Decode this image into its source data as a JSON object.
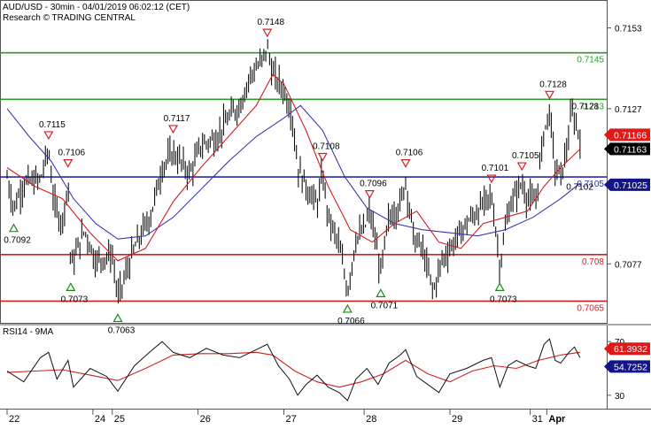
{
  "header": {
    "title": "AUD/USD - 30min - 04/01/2019 06:02:12 (CET)",
    "subtitle": "Research © TRADING CENTRAL"
  },
  "colors": {
    "green_line": "#2e9a2e",
    "blue_line": "#2a2aa8",
    "red_line": "#d42020",
    "candles": "#111111",
    "ma_red": "#cc2222",
    "ma_blue": "#3a3ab0",
    "rsi": "#111111",
    "rsi_ma": "#cc2222",
    "badge_red": "#e01818",
    "badge_black": "#000000",
    "badge_blue": "#14148a",
    "marker_green": "#1a8a1a",
    "marker_red": "#d42020"
  },
  "chart_data": [
    {
      "type": "line",
      "name": "price",
      "y_ticks": [
        "0.7153",
        "0.7127",
        "0.7102",
        "0.7077"
      ],
      "ylim": [
        0.7058,
        0.7162
      ],
      "x_ticks": [
        "22",
        "24",
        "25",
        "26",
        "27",
        "28",
        "29",
        "31",
        "Apr"
      ],
      "levels": [
        {
          "label": "0.7145",
          "value": 0.7145,
          "color": "green"
        },
        {
          "label": "0.713",
          "value": 0.713,
          "color": "green"
        },
        {
          "label": "0.7105",
          "value": 0.7105,
          "color": "blue"
        },
        {
          "label": "0.708",
          "value": 0.708,
          "color": "red"
        },
        {
          "label": "0.7065",
          "value": 0.7065,
          "color": "red"
        }
      ],
      "badges": [
        {
          "label": "0.71166",
          "value": 0.71166,
          "style": "red"
        },
        {
          "label": "0.71163",
          "value": 0.71163,
          "style": "black"
        },
        {
          "label": "0.71025",
          "value": 0.71025,
          "style": "blue"
        }
      ],
      "annotations": [
        {
          "label": "0.7092",
          "t": 0.012,
          "value": 0.7092,
          "kind": "low"
        },
        {
          "label": "0.7115",
          "t": 0.075,
          "value": 0.7115,
          "kind": "high"
        },
        {
          "label": "0.7106",
          "t": 0.11,
          "value": 0.7106,
          "kind": "high"
        },
        {
          "label": "0.7073",
          "t": 0.115,
          "value": 0.7073,
          "kind": "low"
        },
        {
          "label": "0.7063",
          "t": 0.2,
          "value": 0.7063,
          "kind": "low"
        },
        {
          "label": "0.7117",
          "t": 0.3,
          "value": 0.7117,
          "kind": "high"
        },
        {
          "label": "0.7148",
          "t": 0.47,
          "value": 0.7148,
          "kind": "high"
        },
        {
          "label": "0.7108",
          "t": 0.57,
          "value": 0.7108,
          "kind": "high"
        },
        {
          "label": "0.7066",
          "t": 0.615,
          "value": 0.7066,
          "kind": "low"
        },
        {
          "label": "0.7096",
          "t": 0.655,
          "value": 0.7096,
          "kind": "high"
        },
        {
          "label": "0.7071",
          "t": 0.675,
          "value": 0.7071,
          "kind": "low"
        },
        {
          "label": "0.7106",
          "t": 0.72,
          "value": 0.7106,
          "kind": "high"
        },
        {
          "label": "0.7101",
          "t": 0.875,
          "value": 0.7101,
          "kind": "high"
        },
        {
          "label": "0.7073",
          "t": 0.89,
          "value": 0.7073,
          "kind": "low"
        },
        {
          "label": "0.7105",
          "t": 0.93,
          "value": 0.7105,
          "kind": "high"
        },
        {
          "label": "0.7128",
          "t": 0.98,
          "value": 0.7128,
          "kind": "high"
        },
        {
          "label": "0.7128",
          "t": 1.02,
          "value": 0.7128,
          "kind": "label"
        },
        {
          "label": "0.7102",
          "t": 1.01,
          "value": 0.7102,
          "kind": "label"
        }
      ],
      "series": [
        {
          "name": "price",
          "points": [
            [
              0.0,
              0.7105
            ],
            [
              0.012,
              0.7095
            ],
            [
              0.03,
              0.7103
            ],
            [
              0.06,
              0.7104
            ],
            [
              0.075,
              0.7114
            ],
            [
              0.085,
              0.7096
            ],
            [
              0.1,
              0.709
            ],
            [
              0.11,
              0.7104
            ],
            [
              0.115,
              0.7076
            ],
            [
              0.14,
              0.7088
            ],
            [
              0.16,
              0.7078
            ],
            [
              0.19,
              0.708
            ],
            [
              0.2,
              0.7066
            ],
            [
              0.23,
              0.7082
            ],
            [
              0.26,
              0.7093
            ],
            [
              0.28,
              0.7108
            ],
            [
              0.3,
              0.7113
            ],
            [
              0.33,
              0.7106
            ],
            [
              0.35,
              0.7115
            ],
            [
              0.38,
              0.7118
            ],
            [
              0.4,
              0.7124
            ],
            [
              0.42,
              0.7128
            ],
            [
              0.44,
              0.7138
            ],
            [
              0.46,
              0.7142
            ],
            [
              0.47,
              0.7147
            ],
            [
              0.48,
              0.7138
            ],
            [
              0.5,
              0.7133
            ],
            [
              0.515,
              0.7125
            ],
            [
              0.525,
              0.7108
            ],
            [
              0.54,
              0.7102
            ],
            [
              0.56,
              0.7096
            ],
            [
              0.57,
              0.7106
            ],
            [
              0.58,
              0.7092
            ],
            [
              0.6,
              0.7083
            ],
            [
              0.615,
              0.7068
            ],
            [
              0.63,
              0.7085
            ],
            [
              0.645,
              0.7088
            ],
            [
              0.655,
              0.7094
            ],
            [
              0.665,
              0.7085
            ],
            [
              0.675,
              0.7074
            ],
            [
              0.69,
              0.7092
            ],
            [
              0.71,
              0.7096
            ],
            [
              0.72,
              0.7104
            ],
            [
              0.735,
              0.7085
            ],
            [
              0.75,
              0.7082
            ],
            [
              0.77,
              0.7068
            ],
            [
              0.785,
              0.7078
            ],
            [
              0.8,
              0.7082
            ],
            [
              0.83,
              0.709
            ],
            [
              0.86,
              0.7096
            ],
            [
              0.875,
              0.7099
            ],
            [
              0.885,
              0.7085
            ],
            [
              0.89,
              0.7076
            ],
            [
              0.905,
              0.7094
            ],
            [
              0.92,
              0.71
            ],
            [
              0.93,
              0.7103
            ],
            [
              0.94,
              0.7098
            ],
            [
              0.955,
              0.7097
            ],
            [
              0.97,
              0.712
            ],
            [
              0.98,
              0.7126
            ],
            [
              0.99,
              0.7108
            ],
            [
              1.0,
              0.7105
            ],
            [
              1.01,
              0.7113
            ],
            [
              1.02,
              0.7126
            ],
            [
              1.035,
              0.7118
            ]
          ]
        },
        {
          "name": "ma-fast",
          "points": [
            [
              0.0,
              0.7108
            ],
            [
              0.05,
              0.7102
            ],
            [
              0.1,
              0.7098
            ],
            [
              0.15,
              0.7087
            ],
            [
              0.2,
              0.7078
            ],
            [
              0.25,
              0.7082
            ],
            [
              0.3,
              0.7097
            ],
            [
              0.35,
              0.7108
            ],
            [
              0.4,
              0.7118
            ],
            [
              0.45,
              0.7128
            ],
            [
              0.48,
              0.7138
            ],
            [
              0.5,
              0.7135
            ],
            [
              0.54,
              0.712
            ],
            [
              0.58,
              0.7102
            ],
            [
              0.62,
              0.7088
            ],
            [
              0.66,
              0.7084
            ],
            [
              0.7,
              0.709
            ],
            [
              0.74,
              0.7094
            ],
            [
              0.78,
              0.7084
            ],
            [
              0.82,
              0.7082
            ],
            [
              0.86,
              0.709
            ],
            [
              0.9,
              0.7092
            ],
            [
              0.94,
              0.7094
            ],
            [
              0.97,
              0.7102
            ],
            [
              1.0,
              0.7108
            ],
            [
              1.035,
              0.7114
            ]
          ]
        },
        {
          "name": "ma-slow",
          "points": [
            [
              0.0,
              0.7127
            ],
            [
              0.04,
              0.7118
            ],
            [
              0.08,
              0.711
            ],
            [
              0.12,
              0.7098
            ],
            [
              0.16,
              0.709
            ],
            [
              0.2,
              0.7085
            ],
            [
              0.25,
              0.7086
            ],
            [
              0.3,
              0.7092
            ],
            [
              0.35,
              0.7101
            ],
            [
              0.4,
              0.711
            ],
            [
              0.45,
              0.7118
            ],
            [
              0.5,
              0.7124
            ],
            [
              0.53,
              0.7128
            ],
            [
              0.57,
              0.712
            ],
            [
              0.61,
              0.7105
            ],
            [
              0.65,
              0.7095
            ],
            [
              0.7,
              0.709
            ],
            [
              0.75,
              0.7088
            ],
            [
              0.8,
              0.7087
            ],
            [
              0.85,
              0.7086
            ],
            [
              0.9,
              0.7088
            ],
            [
              0.95,
              0.7092
            ],
            [
              1.0,
              0.7098
            ],
            [
              1.035,
              0.7103
            ]
          ]
        }
      ]
    },
    {
      "type": "line",
      "name": "rsi",
      "title": "RSI14 - 9MA",
      "y_ticks": [
        "70",
        "30"
      ],
      "ylim": [
        20,
        82
      ],
      "badges": [
        {
          "label": "61.3932",
          "value": 61.3932,
          "style": "red"
        },
        {
          "label": "54.7252",
          "value": 54.7252,
          "style": "blue"
        }
      ],
      "series": [
        {
          "name": "rsi",
          "points": [
            [
              0.0,
              48
            ],
            [
              0.03,
              40
            ],
            [
              0.06,
              58
            ],
            [
              0.075,
              62
            ],
            [
              0.09,
              42
            ],
            [
              0.11,
              56
            ],
            [
              0.12,
              36
            ],
            [
              0.15,
              50
            ],
            [
              0.18,
              44
            ],
            [
              0.2,
              33
            ],
            [
              0.23,
              52
            ],
            [
              0.26,
              63
            ],
            [
              0.28,
              70
            ],
            [
              0.3,
              62
            ],
            [
              0.33,
              58
            ],
            [
              0.36,
              65
            ],
            [
              0.39,
              60
            ],
            [
              0.42,
              58
            ],
            [
              0.45,
              64
            ],
            [
              0.47,
              68
            ],
            [
              0.49,
              52
            ],
            [
              0.51,
              42
            ],
            [
              0.525,
              30
            ],
            [
              0.54,
              38
            ],
            [
              0.56,
              45
            ],
            [
              0.58,
              36
            ],
            [
              0.6,
              32
            ],
            [
              0.615,
              26
            ],
            [
              0.63,
              42
            ],
            [
              0.65,
              50
            ],
            [
              0.67,
              38
            ],
            [
              0.69,
              54
            ],
            [
              0.71,
              60
            ],
            [
              0.72,
              64
            ],
            [
              0.74,
              44
            ],
            [
              0.76,
              38
            ],
            [
              0.78,
              32
            ],
            [
              0.8,
              46
            ],
            [
              0.83,
              50
            ],
            [
              0.86,
              56
            ],
            [
              0.875,
              58
            ],
            [
              0.89,
              36
            ],
            [
              0.905,
              52
            ],
            [
              0.92,
              56
            ],
            [
              0.94,
              52
            ],
            [
              0.955,
              50
            ],
            [
              0.97,
              68
            ],
            [
              0.98,
              72
            ],
            [
              0.99,
              56
            ],
            [
              1.0,
              54
            ],
            [
              1.015,
              62
            ],
            [
              1.025,
              66
            ],
            [
              1.035,
              58
            ]
          ]
        },
        {
          "name": "rsi-ma",
          "points": [
            [
              0.0,
              47
            ],
            [
              0.05,
              48
            ],
            [
              0.1,
              49
            ],
            [
              0.15,
              45
            ],
            [
              0.2,
              41
            ],
            [
              0.25,
              50
            ],
            [
              0.3,
              60
            ],
            [
              0.35,
              61
            ],
            [
              0.4,
              61
            ],
            [
              0.45,
              62
            ],
            [
              0.48,
              60
            ],
            [
              0.52,
              48
            ],
            [
              0.56,
              40
            ],
            [
              0.6,
              36
            ],
            [
              0.64,
              40
            ],
            [
              0.68,
              46
            ],
            [
              0.72,
              56
            ],
            [
              0.76,
              46
            ],
            [
              0.8,
              40
            ],
            [
              0.84,
              48
            ],
            [
              0.88,
              52
            ],
            [
              0.92,
              50
            ],
            [
              0.96,
              56
            ],
            [
              1.0,
              60
            ],
            [
              1.035,
              62
            ]
          ]
        }
      ]
    }
  ]
}
